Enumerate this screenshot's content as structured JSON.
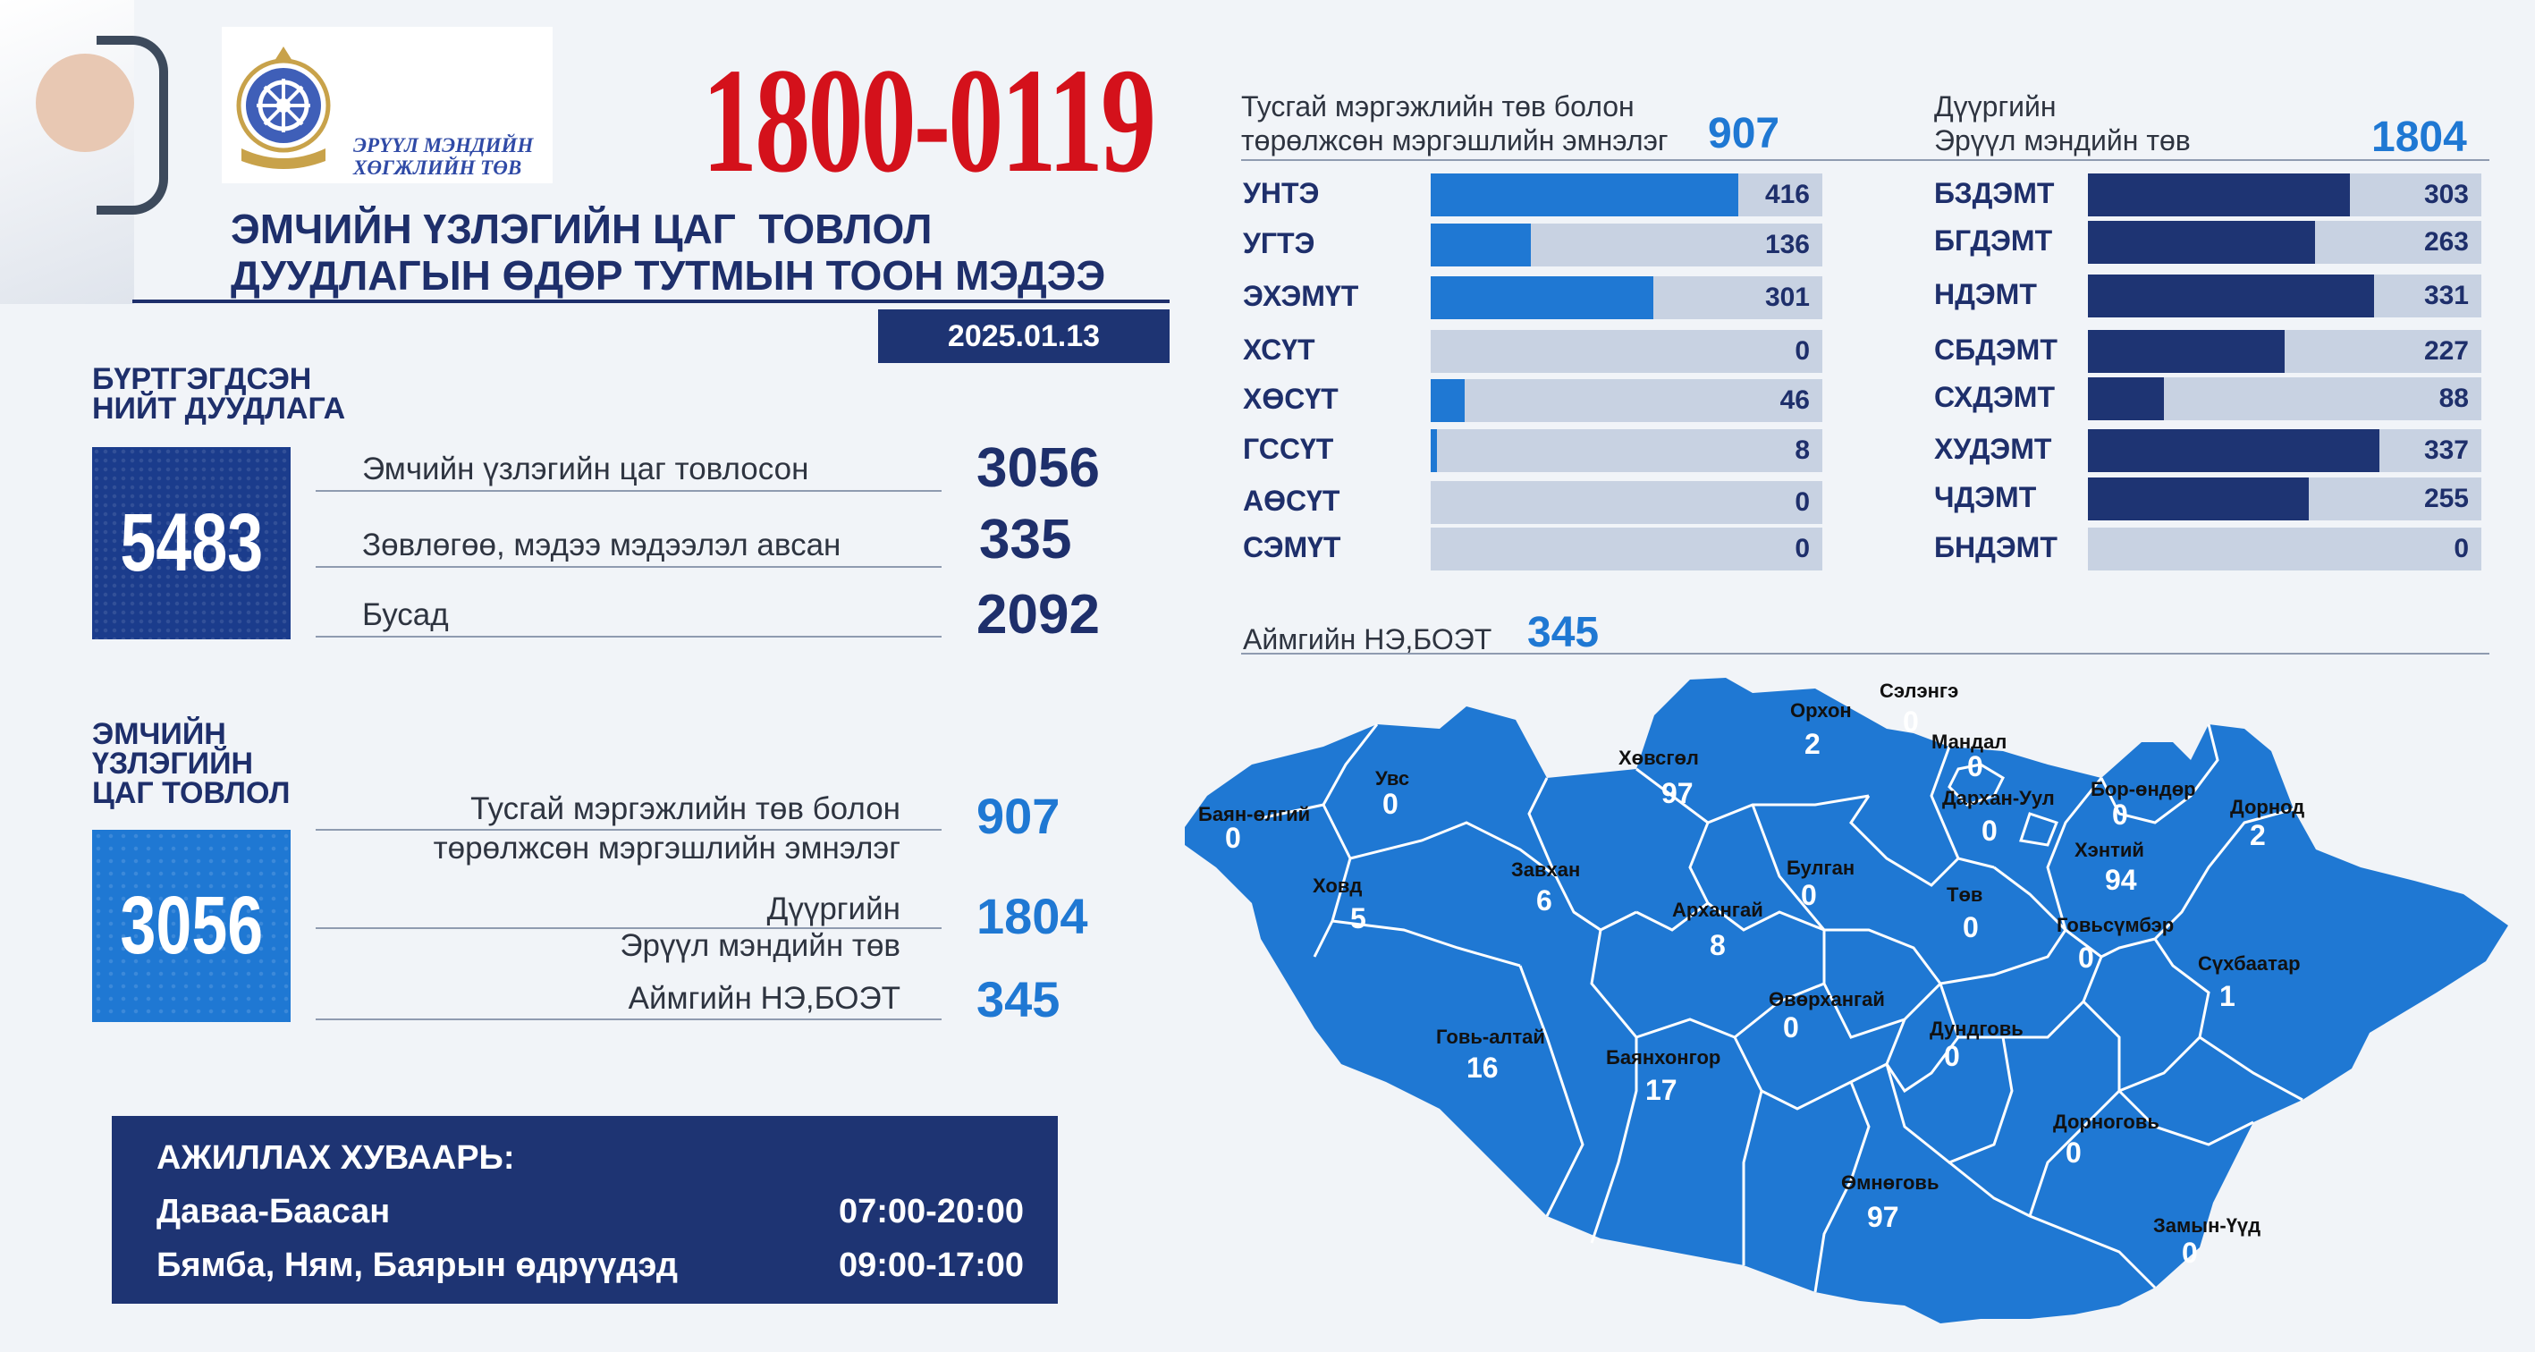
{
  "logo": {
    "line1": "ЭРҮҮЛ МЭНДИЙН",
    "line2": "ХӨГЖЛИЙН ТӨВ"
  },
  "hotline": "1800-0119",
  "title": {
    "line1": "ЭМЧИЙН ҮЗЛЭГИЙН ЦАГ  ТОВЛОЛ",
    "line2": "ДУУДЛАГЫН ӨДӨР ТУТМЫН ТООН МЭДЭЭ"
  },
  "date": "2025.01.13",
  "registered": {
    "label1": "БҮРТГЭГДСЭН",
    "label2": "НИЙТ ДУУДЛАГА",
    "total": "5483",
    "rows": [
      {
        "label": "Эмчийн үзлэгийн цаг товлосон",
        "value": "3056"
      },
      {
        "label": "Зөвлөгөө, мэдээ мэдээлэл авсан",
        "value": "335"
      },
      {
        "label": "Бусад",
        "value": "2092"
      }
    ]
  },
  "appointments": {
    "label1": "ЭМЧИЙН",
    "label2": "ҮЗЛЭГИЙН",
    "label3": "ЦАГ ТОВЛОЛ",
    "total": "3056",
    "rows": [
      {
        "label1": "Тусгай мэргэжлийн төв болон",
        "label2": "төрөлжсөн мэргэшлийн эмнэлэг",
        "value": "907"
      },
      {
        "label1": "Дүүргийн",
        "label2": "Эрүүл мэндийн төв",
        "value": "1804"
      },
      {
        "label1": "Аймгийн НЭ,БОЭТ",
        "value": "345"
      }
    ]
  },
  "schedule": {
    "title": "АЖИЛЛАХ ХУВААРЬ:",
    "rows": [
      {
        "days": "Даваа-Баасан",
        "time": "07:00-20:00"
      },
      {
        "days": "Бямба, Ням, Баярын өдрүүдэд",
        "time": "09:00-17:00"
      }
    ]
  },
  "specialized": {
    "head1": "Тусгай мэргэжлийн төв болон",
    "head2": "төрөлжсөн мэргэшлийн эмнэлэг",
    "total": "907",
    "bar_color": "#1f78d3",
    "scale_max": 530,
    "items": [
      {
        "label": "УНТЭ",
        "value": 416
      },
      {
        "label": "УГТЭ",
        "value": 136
      },
      {
        "label": "ЭХЭМҮТ",
        "value": 301
      },
      {
        "label": "ХСҮТ",
        "value": 0
      },
      {
        "label": "ХӨСҮТ",
        "value": 46
      },
      {
        "label": "ГССҮТ",
        "value": 8
      },
      {
        "label": "АӨСҮТ",
        "value": 0
      },
      {
        "label": "СЭМҮТ",
        "value": 0
      }
    ]
  },
  "district": {
    "head1": "Дүүргийн",
    "head2": "Эрүүл мэндийн төв",
    "total": "1804",
    "bar_color": "#1e3473",
    "scale_max": 455,
    "items": [
      {
        "label": "БЗДЭМТ",
        "value": 303
      },
      {
        "label": "БГДЭМТ",
        "value": 263
      },
      {
        "label": "НДЭМТ",
        "value": 331
      },
      {
        "label": "СБДЭМТ",
        "value": 227
      },
      {
        "label": "СХДЭМТ",
        "value": 88
      },
      {
        "label": "ХУДЭМТ",
        "value": 337
      },
      {
        "label": "ЧДЭМТ",
        "value": 255
      },
      {
        "label": "БНДЭМТ",
        "value": 0
      }
    ]
  },
  "aimag": {
    "head": "Аймгийн НЭ,БОЭТ",
    "total": "345",
    "map_color": "#1f78d3",
    "regions": [
      {
        "name": "Баян-өлгий",
        "value": "0"
      },
      {
        "name": "Увс",
        "value": "0"
      },
      {
        "name": "Ховд",
        "value": "5"
      },
      {
        "name": "Завхан",
        "value": "6"
      },
      {
        "name": "Хөвсгөл",
        "value": "97"
      },
      {
        "name": "Архангай",
        "value": "8"
      },
      {
        "name": "Булган",
        "value": "0"
      },
      {
        "name": "Орхон",
        "value": "2"
      },
      {
        "name": "Сэлэнгэ",
        "value": "0"
      },
      {
        "name": "Мандал",
        "value": "0"
      },
      {
        "name": "Дархан-Уул",
        "value": "0"
      },
      {
        "name": "Төв",
        "value": "0"
      },
      {
        "name": "Бор-өндөр",
        "value": "0"
      },
      {
        "name": "Хэнтий",
        "value": "94"
      },
      {
        "name": "Дорнод",
        "value": "2"
      },
      {
        "name": "Говьсүмбэр",
        "value": "0"
      },
      {
        "name": "Сүхбаатар",
        "value": "1"
      },
      {
        "name": "Говь-алтай",
        "value": "16"
      },
      {
        "name": "Баянхонгор",
        "value": "17"
      },
      {
        "name": "Өвөрхангай",
        "value": "0"
      },
      {
        "name": "Дундговь",
        "value": "0"
      },
      {
        "name": "Өмнөговь",
        "value": "97"
      },
      {
        "name": "Дорноговь",
        "value": "0"
      },
      {
        "name": "Замын-Үүд",
        "value": "0"
      }
    ]
  }
}
